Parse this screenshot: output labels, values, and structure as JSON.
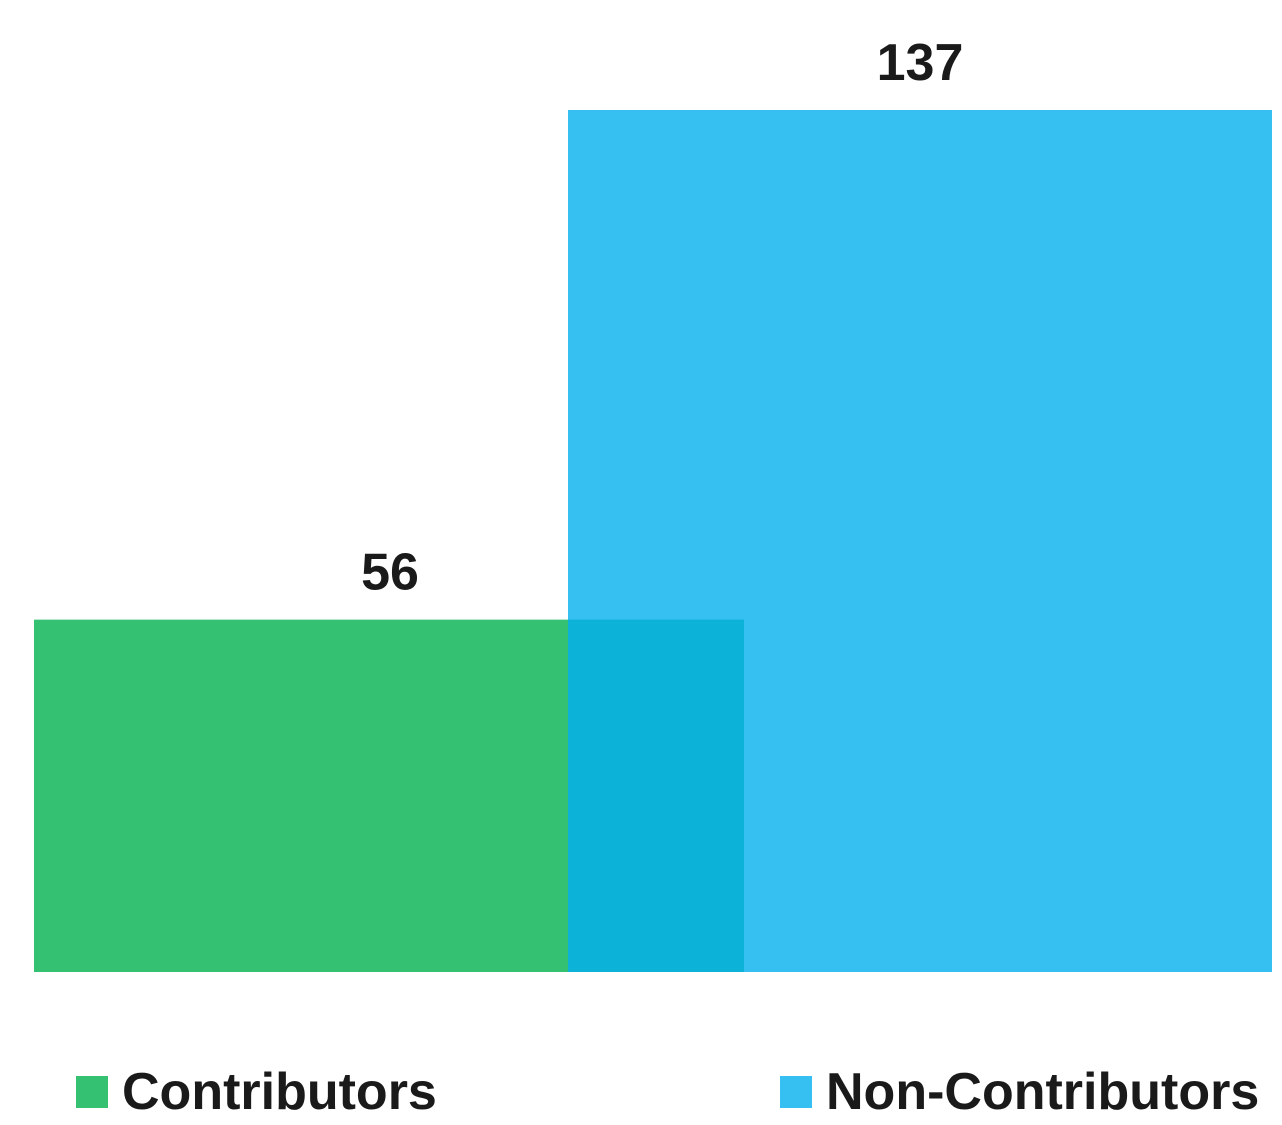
{
  "chart_data": {
    "type": "bar",
    "categories": [
      "Contributors",
      "Non-Contributors"
    ],
    "values": [
      56,
      137
    ],
    "data_labels": [
      "56",
      "137"
    ],
    "colors": {
      "Contributors": "#35c172",
      "Non-Contributors": "#36c0f2",
      "overlap": "#0db2d8"
    },
    "title": "",
    "xlabel": "",
    "ylabel": "",
    "ylim": [
      0,
      137
    ],
    "grid": false,
    "legend_position": "bottom"
  },
  "legend": {
    "items": [
      {
        "label": "Contributors",
        "color": "#35c172"
      },
      {
        "label": "Non-Contributors",
        "color": "#36c0f2"
      }
    ]
  }
}
